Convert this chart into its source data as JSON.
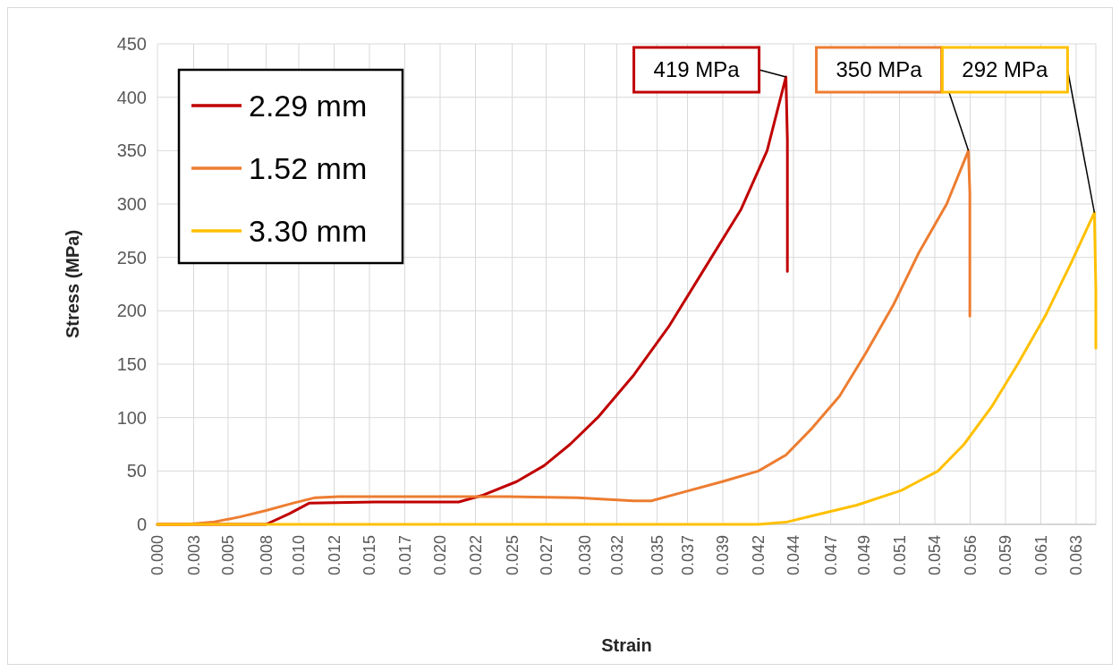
{
  "chart_data": {
    "type": "line",
    "xlabel": "Strain",
    "ylabel": "Stress (MPa)",
    "xlim": [
      0,
      0.0648
    ],
    "ylim": [
      0,
      450
    ],
    "yticks": [
      0,
      50,
      100,
      150,
      200,
      250,
      300,
      350,
      400,
      450
    ],
    "xticks": [
      {
        "value": 0,
        "label": "0.000"
      },
      {
        "value": 0.0025,
        "label": "0.003"
      },
      {
        "value": 0.00488,
        "label": "0.005"
      },
      {
        "value": 0.0075,
        "label": "0.008"
      },
      {
        "value": 0.00976,
        "label": "0.010"
      },
      {
        "value": 0.0122,
        "label": "0.012"
      },
      {
        "value": 0.01464,
        "label": "0.015"
      },
      {
        "value": 0.01708,
        "label": "0.017"
      },
      {
        "value": 0.01952,
        "label": "0.020"
      },
      {
        "value": 0.02196,
        "label": "0.022"
      },
      {
        "value": 0.0245,
        "label": "0.025"
      },
      {
        "value": 0.02684,
        "label": "0.027"
      },
      {
        "value": 0.0295,
        "label": "0.030"
      },
      {
        "value": 0.03172,
        "label": "0.032"
      },
      {
        "value": 0.0345,
        "label": "0.035"
      },
      {
        "value": 0.0366,
        "label": "0.037"
      },
      {
        "value": 0.03904,
        "label": "0.039"
      },
      {
        "value": 0.0415,
        "label": "0.042"
      },
      {
        "value": 0.04392,
        "label": "0.044"
      },
      {
        "value": 0.0465,
        "label": "0.047"
      },
      {
        "value": 0.0488,
        "label": "0.049"
      },
      {
        "value": 0.05124,
        "label": "0.051"
      },
      {
        "value": 0.05368,
        "label": "0.054"
      },
      {
        "value": 0.05612,
        "label": "0.056"
      },
      {
        "value": 0.05856,
        "label": "0.059"
      },
      {
        "value": 0.061,
        "label": "0.061"
      },
      {
        "value": 0.06344,
        "label": "0.063"
      }
    ],
    "grid": true,
    "legend": "top left",
    "series": [
      {
        "name": "2.29 mm",
        "color": "#c00000",
        "x": [
          0,
          0.0075,
          0.0091,
          0.0105,
          0.015,
          0.0208,
          0.0224,
          0.0248,
          0.0267,
          0.0285,
          0.0304,
          0.0329,
          0.0353,
          0.0378,
          0.0403,
          0.0421,
          0.0434,
          0.0435,
          0.0435
        ],
        "values": [
          0,
          0,
          10,
          20,
          21,
          21,
          27,
          40,
          55,
          75,
          100,
          140,
          185,
          240,
          295,
          350,
          419,
          360,
          237
        ]
      },
      {
        "name": "1.52 mm",
        "color": "#ed7d31",
        "x": [
          0,
          0.002,
          0.0038,
          0.0057,
          0.0075,
          0.0094,
          0.0109,
          0.0125,
          0.018,
          0.0242,
          0.029,
          0.0329,
          0.0341,
          0.036,
          0.039,
          0.0415,
          0.0434,
          0.0452,
          0.0471,
          0.0489,
          0.0508,
          0.0526,
          0.0545,
          0.056,
          0.0561,
          0.0561
        ],
        "values": [
          0,
          0,
          2,
          7,
          13,
          20,
          25,
          26,
          26,
          26,
          25,
          22,
          22,
          29,
          40,
          50,
          65,
          90,
          120,
          160,
          205,
          255,
          300,
          350,
          310,
          195
        ]
      },
      {
        "name": "3.30 mm",
        "color": "#ffc000",
        "x": [
          0,
          0.0415,
          0.0434,
          0.0452,
          0.0483,
          0.0514,
          0.0539,
          0.0557,
          0.0576,
          0.0594,
          0.0613,
          0.0631,
          0.0647,
          0.0648,
          0.0648
        ],
        "values": [
          0,
          0,
          2,
          8,
          18,
          32,
          50,
          75,
          110,
          150,
          195,
          245,
          292,
          220,
          165
        ]
      }
    ],
    "annotations": [
      {
        "text": "419 MPa",
        "x": 0.0434,
        "y": 419
      },
      {
        "text": "350 MPa",
        "x": 0.056,
        "y": 350
      },
      {
        "text": "292 MPa",
        "x": 0.0647,
        "y": 292
      }
    ]
  }
}
